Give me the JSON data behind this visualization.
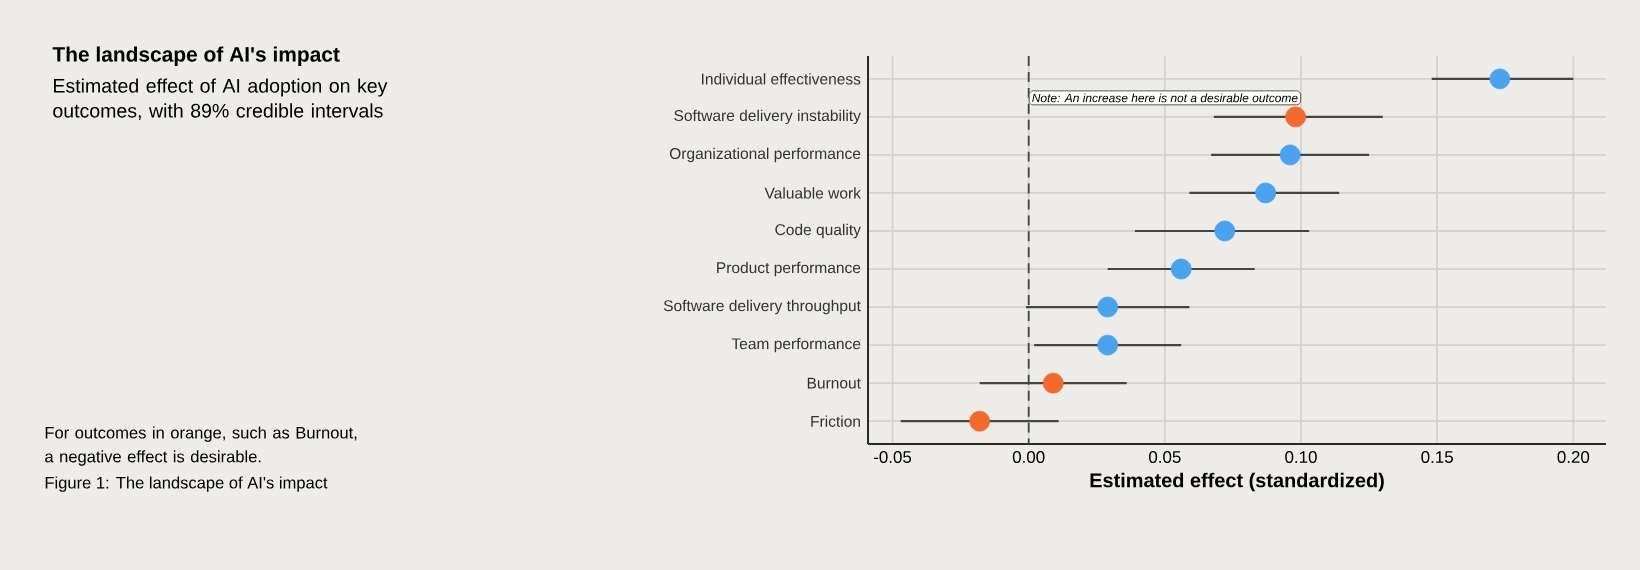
{
  "chart_data": {
    "type": "scatter",
    "orientation": "horizontal",
    "title": "The landscape of AI's impact",
    "subtitle": "Estimated effect of AI adoption on key outcomes, with 89% credible intervals",
    "xlabel": "Estimated effect (standardized)",
    "categories": [
      "Individual effectiveness",
      "Software delivery instability",
      "Organizational performance",
      "Valuable work",
      "Code quality",
      "Product performance",
      "Software delivery throughput",
      "Team performance",
      "Burnout",
      "Friction"
    ],
    "values": [
      0.173,
      0.098,
      0.096,
      0.087,
      0.072,
      0.056,
      0.029,
      0.029,
      0.009,
      -0.018
    ],
    "errors": [
      [
        0.148,
        0.2
      ],
      [
        0.068,
        0.13
      ],
      [
        0.067,
        0.125
      ],
      [
        0.059,
        0.114
      ],
      [
        0.039,
        0.103
      ],
      [
        0.029,
        0.083
      ],
      [
        -0.001,
        0.059
      ],
      [
        0.002,
        0.056
      ],
      [
        -0.018,
        0.036
      ],
      [
        -0.047,
        0.011
      ]
    ],
    "colors": [
      "#4aa3ec",
      "#f26a2e",
      "#4aa3ec",
      "#4aa3ec",
      "#4aa3ec",
      "#4aa3ec",
      "#4aa3ec",
      "#4aa3ec",
      "#f26a2e",
      "#f26a2e"
    ],
    "xlim": [
      -0.059,
      0.212
    ],
    "xticks": [
      {
        "value": -0.05,
        "label": "-0.05"
      },
      {
        "value": 0,
        "label": "0.00"
      },
      {
        "value": 0.05,
        "label": "0.05"
      },
      {
        "value": 0.1,
        "label": "0.10"
      },
      {
        "value": 0.15,
        "label": "0.15"
      },
      {
        "value": 0.2,
        "label": "0.20"
      }
    ],
    "ref_lines": [
      {
        "axis": "x",
        "value": 0,
        "line_style": "dashed",
        "color": "#444444"
      }
    ],
    "grid": true,
    "annotations": [
      {
        "text": "Note: An increase here is not a desirable outcome",
        "x": 0,
        "y": "Software delivery instability"
      },
      "For outcomes in orange, such as Burnout, a negative effect is desirable.",
      "Figure 1: The landscape of AI's impact"
    ]
  }
}
